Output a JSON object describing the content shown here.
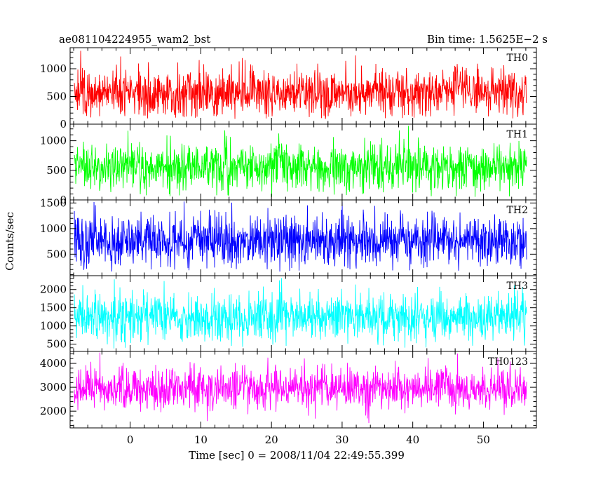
{
  "chart_data": {
    "type": "line",
    "title_left": "ae081104224955_wam2_bst",
    "title_right": "Bin time: 1.5625E−2 s",
    "xlabel": "Time [sec] 0 = 2008/11/04 22:49:55.399",
    "ylabel": "Counts/sec",
    "xlim": [
      -8.5,
      57.5
    ],
    "data_x_range": [
      -7.9,
      56.1
    ],
    "x_ticks": [
      0,
      10,
      20,
      30,
      40,
      50
    ],
    "x_tick_labels": [
      "0",
      "10",
      "20",
      "30",
      "40",
      "50"
    ],
    "grid": false,
    "panels": [
      {
        "label": "TH0",
        "color": "#ff0000",
        "ylim": [
          0,
          1380
        ],
        "y_ticks": [
          0,
          500,
          1000
        ],
        "y_tick_labels": [
          "0",
          "500",
          "1000"
        ],
        "mean": 570,
        "sd": 215,
        "min": 90,
        "max": 1380
      },
      {
        "label": "TH1",
        "color": "#00ff00",
        "ylim": [
          0,
          1280
        ],
        "y_ticks": [
          0,
          500,
          1000
        ],
        "y_tick_labels": [
          "0",
          "500",
          "1000"
        ],
        "mean": 560,
        "sd": 205,
        "min": 20,
        "max": 1280
      },
      {
        "label": "TH2",
        "color": "#0000ff",
        "ylim": [
          80,
          1560
        ],
        "y_ticks": [
          500,
          1000,
          1500
        ],
        "y_tick_labels": [
          "500",
          "1000",
          "1500"
        ],
        "mean": 760,
        "sd": 245,
        "min": 160,
        "max": 1560
      },
      {
        "label": "TH3",
        "color": "#00ffff",
        "ylim": [
          300,
          2380
        ],
        "y_ticks": [
          500,
          1000,
          1500,
          2000
        ],
        "y_tick_labels": [
          "500",
          "1000",
          "1500",
          "2000"
        ],
        "mean": 1250,
        "sd": 330,
        "min": 380,
        "max": 2380
      },
      {
        "label": "TH0123",
        "color": "#ff00ff",
        "ylim": [
          1300,
          4500
        ],
        "y_ticks": [
          2000,
          3000,
          4000
        ],
        "y_tick_labels": [
          "2000",
          "3000",
          "4000"
        ],
        "mean": 2950,
        "sd": 440,
        "min": 1350,
        "max": 4500
      }
    ]
  }
}
